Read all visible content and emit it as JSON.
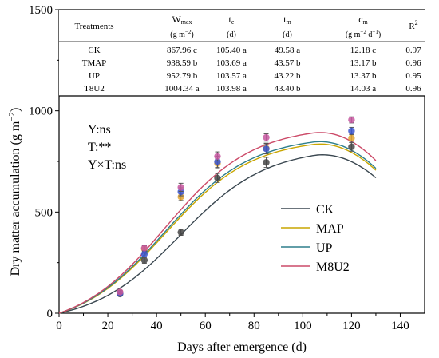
{
  "chart_data": {
    "type": "line",
    "xlabel": "Days after emergence (d)",
    "ylabel": "Dry matter accumulation (g m",
    "ylabel_sup": "−2",
    "ylabel_close": ")",
    "xlim": [
      0,
      150
    ],
    "ylim": [
      0,
      1500
    ],
    "xticks": [
      0,
      20,
      40,
      60,
      80,
      100,
      120,
      140
    ],
    "yticks": [
      0,
      500,
      1000,
      1500
    ],
    "stats_annotations": [
      "Y:ns",
      "T:**",
      "Y×T:ns"
    ],
    "legend_position": "right",
    "colors": {
      "CK": "#3a4750",
      "MAP": "#c9a600",
      "UP": "#2e7f8c",
      "M8U2": "#cc4a68",
      "point_CK": "#444444",
      "point_MAP": "#e0a32e",
      "point_UP": "#3a55d0",
      "point_M8U2": "#c757a0",
      "error_bar": "#555555"
    },
    "series": [
      {
        "name": "CK",
        "key": "CK",
        "wmax": 867.96,
        "tm": 49.58,
        "cm": 12.18,
        "points": [
          [
            25,
            95
          ],
          [
            35,
            262
          ],
          [
            50,
            400
          ],
          [
            65,
            668
          ],
          [
            85,
            745
          ],
          [
            120,
            822
          ]
        ],
        "errors": [
          8,
          15,
          15,
          22,
          25,
          22
        ]
      },
      {
        "name": "MAP",
        "key": "MAP",
        "wmax": 938.59,
        "tm": 43.57,
        "cm": 13.17,
        "points": [
          [
            25,
            103
          ],
          [
            35,
            318
          ],
          [
            50,
            575
          ],
          [
            65,
            740
          ],
          [
            85,
            815
          ],
          [
            120,
            865
          ]
        ],
        "errors": [
          10,
          15,
          18,
          22,
          25,
          22
        ]
      },
      {
        "name": "UP",
        "key": "UP",
        "wmax": 952.79,
        "tm": 43.22,
        "cm": 13.37,
        "points": [
          [
            25,
            98
          ],
          [
            35,
            292
          ],
          [
            50,
            600
          ],
          [
            65,
            748
          ],
          [
            85,
            812
          ],
          [
            120,
            900
          ]
        ],
        "errors": [
          8,
          15,
          20,
          28,
          25,
          18
        ]
      },
      {
        "name": "M8U2",
        "key": "M8U2",
        "wmax": 1004.34,
        "tm": 43.4,
        "cm": 14.03,
        "points": [
          [
            25,
            105
          ],
          [
            35,
            322
          ],
          [
            50,
            622
          ],
          [
            65,
            775
          ],
          [
            85,
            868
          ],
          [
            120,
            955
          ]
        ],
        "errors": [
          8,
          12,
          20,
          22,
          18,
          15
        ]
      }
    ],
    "fit_x_range": [
      0,
      130
    ],
    "table": {
      "headers": [
        "Treatments",
        "W",
        "max",
        "(g m",
        "−2",
        ")",
        "t",
        "e",
        "(d)",
        "t",
        "m",
        "(d)",
        "c",
        "m",
        "(g m",
        "−2",
        " d",
        "−1",
        ")",
        "R",
        "2"
      ],
      "rows": [
        {
          "treatment": "CK",
          "wmax": "867.96 c",
          "te": "105.40 a",
          "tm": "49.58 a",
          "cm": "12.18 c",
          "r2": "0.97"
        },
        {
          "treatment": "TMAP",
          "wmax": "938.59 b",
          "te": "103.69 a",
          "tm": "43.57 b",
          "cm": "13.17 b",
          "r2": "0.96"
        },
        {
          "treatment": "UP",
          "wmax": "952.79 b",
          "te": "103.57 a",
          "tm": "43.22 b",
          "cm": "13.37 b",
          "r2": "0.95"
        },
        {
          "treatment": "T8U2",
          "wmax": "1004.34 a",
          "te": "103.98 a",
          "tm": "43.40 b",
          "cm": "14.03 a",
          "r2": "0.96"
        }
      ]
    }
  }
}
